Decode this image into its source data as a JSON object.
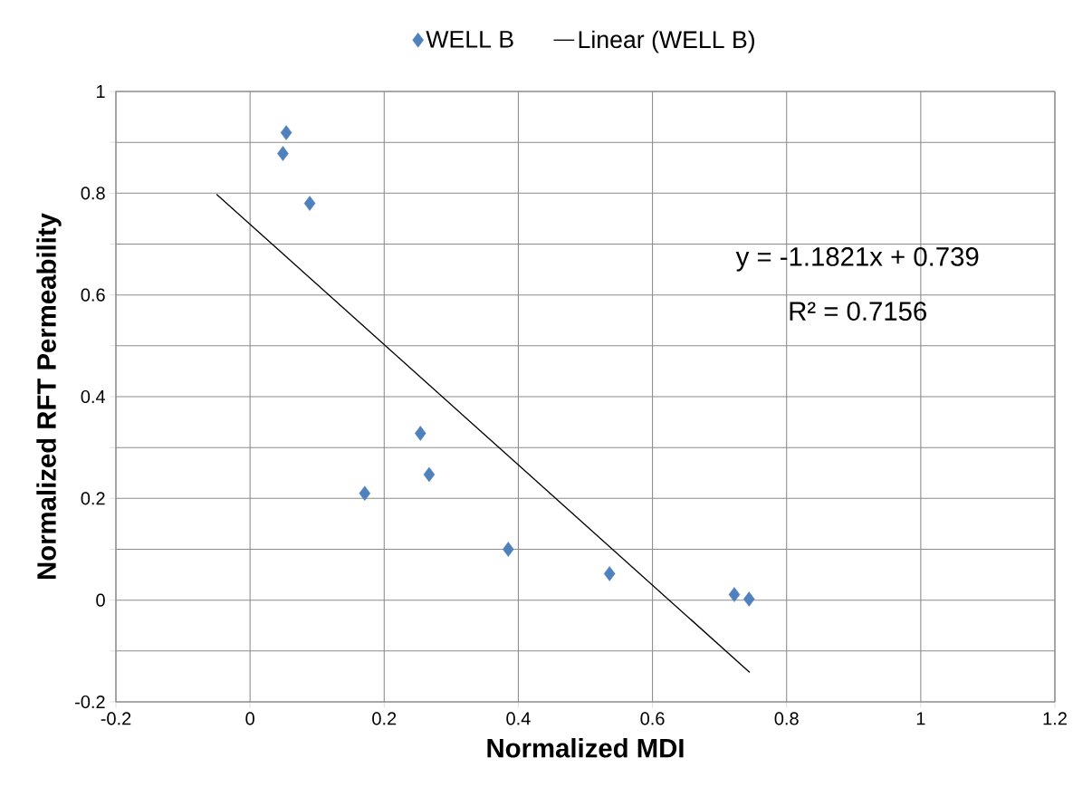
{
  "chart_data": {
    "type": "scatter",
    "xlabel": "Normalized MDI",
    "ylabel": "Normalized RFT Permeability",
    "xlim": [
      -0.2,
      1.2
    ],
    "ylim": [
      -0.2,
      1
    ],
    "xticks": [
      -0.2,
      0,
      0.2,
      0.4,
      0.6,
      0.8,
      1,
      1.2
    ],
    "yticks": [
      -0.2,
      {
        "value": -0.1,
        "label": null
      },
      0,
      {
        "value": 0.1,
        "label": null
      },
      0.2,
      {
        "value": 0.3,
        "label": null
      },
      0.4,
      {
        "value": 0.5,
        "label": null
      },
      0.6,
      {
        "value": 0.7,
        "label": null
      },
      0.8,
      {
        "value": 0.9,
        "label": null
      },
      1
    ],
    "grid": true,
    "legend": "top",
    "series": [
      {
        "name": "WELL B",
        "marker": "diamond",
        "color": "#4f81bd",
        "x": [
          0.054,
          0.049,
          0.089,
          0.171,
          0.254,
          0.267,
          0.385,
          0.536,
          0.722,
          0.744
        ],
        "values": [
          0.919,
          0.878,
          0.78,
          0.21,
          0.328,
          0.247,
          0.1,
          0.052,
          0.011,
          0.002
        ]
      },
      {
        "name": "Linear (WELL B)",
        "type": "line",
        "marker": "none",
        "line_style": "solid",
        "color": "#000000",
        "x": [
          -0.05,
          0.745
        ],
        "values": [
          0.798,
          -0.142
        ]
      }
    ],
    "annotations": [
      "y = -1.1821x + 0.739",
      "R² = 0.7156"
    ]
  }
}
